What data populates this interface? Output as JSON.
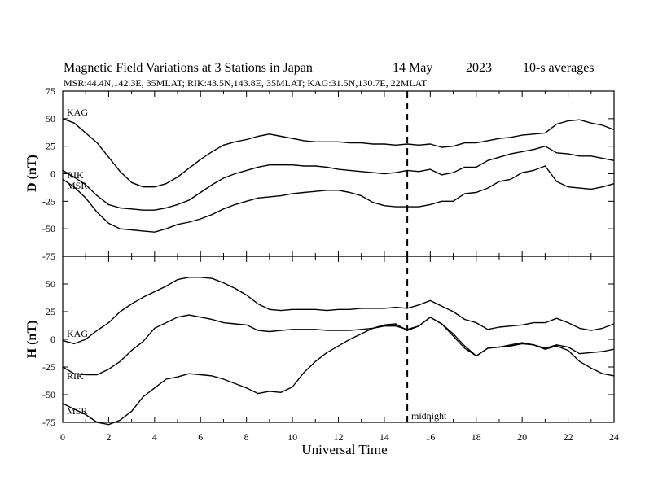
{
  "header": {
    "title": "Magnetic Field Variations at 3 Stations in Japan",
    "date": "14 May",
    "year": "2023",
    "averaging": "10-s averages",
    "stations_info": "MSR:44.4N,142.3E, 35MLAT;  RIK:43.5N,143.8E, 35MLAT;  KAG:31.5N,130.7E, 22MLAT"
  },
  "x_axis": {
    "label": "Universal Time",
    "range": [
      0,
      24
    ],
    "ticks": [
      0,
      2,
      4,
      6,
      8,
      10,
      12,
      14,
      16,
      18,
      20,
      22,
      24
    ]
  },
  "annotation": {
    "midnight_label": "midnight",
    "midnight_ut": 15
  },
  "chart_data": [
    {
      "type": "line",
      "panel": "top",
      "ylabel": "D (nT)",
      "ylim": [
        -75,
        75
      ],
      "yticks": [
        -75,
        -50,
        -25,
        0,
        25,
        50,
        75
      ],
      "x": [
        0,
        0.5,
        1,
        1.5,
        2,
        2.5,
        3,
        3.5,
        4,
        4.5,
        5,
        5.5,
        6,
        6.5,
        7,
        7.5,
        8,
        8.5,
        9,
        9.5,
        10,
        10.5,
        11,
        11.5,
        12,
        12.5,
        13,
        13.5,
        14,
        14.5,
        15,
        15.5,
        16,
        16.5,
        17,
        17.5,
        18,
        18.5,
        19,
        19.5,
        20,
        20.5,
        21,
        21.5,
        22,
        22.5,
        23,
        23.5,
        24
      ],
      "series": [
        {
          "name": "KAG",
          "values": [
            50,
            46,
            37,
            28,
            15,
            2,
            -8,
            -12,
            -12,
            -9,
            -3,
            5,
            13,
            20,
            26,
            29,
            31,
            34,
            36,
            34,
            32,
            30,
            29,
            29,
            29,
            28,
            28,
            27,
            27,
            26,
            27,
            26,
            27,
            24,
            25,
            28,
            28,
            30,
            32,
            33,
            35,
            36,
            37,
            45,
            48,
            49,
            46,
            44,
            40
          ]
        },
        {
          "name": "RIK",
          "values": [
            3,
            -3,
            -10,
            -20,
            -28,
            -31,
            -32,
            -33,
            -33,
            -31,
            -28,
            -24,
            -17,
            -10,
            -4,
            0,
            3,
            6,
            8,
            8,
            8,
            7,
            7,
            6,
            4,
            3,
            2,
            1,
            0,
            1,
            3,
            2,
            4,
            -1,
            1,
            6,
            6,
            12,
            15,
            18,
            20,
            22,
            25,
            19,
            18,
            16,
            16,
            14,
            12
          ]
        },
        {
          "name": "MSR",
          "values": [
            -5,
            -12,
            -22,
            -35,
            -45,
            -50,
            -51,
            -52,
            -53,
            -50,
            -46,
            -44,
            -41,
            -37,
            -32,
            -28,
            -25,
            -22,
            -21,
            -20,
            -18,
            -17,
            -16,
            -15,
            -15,
            -17,
            -20,
            -26,
            -29,
            -30,
            -30,
            -30,
            -28,
            -25,
            -25,
            -18,
            -17,
            -13,
            -7,
            -5,
            1,
            3,
            7,
            -7,
            -12,
            -13,
            -14,
            -12,
            -9
          ]
        }
      ]
    },
    {
      "type": "line",
      "panel": "bottom",
      "ylabel": "H (nT)",
      "ylim": [
        -75,
        75
      ],
      "yticks": [
        -75,
        -50,
        -25,
        0,
        25,
        50,
        75
      ],
      "x": [
        0,
        0.5,
        1,
        1.5,
        2,
        2.5,
        3,
        3.5,
        4,
        4.5,
        5,
        5.5,
        6,
        6.5,
        7,
        7.5,
        8,
        8.5,
        9,
        9.5,
        10,
        10.5,
        11,
        11.5,
        12,
        12.5,
        13,
        13.5,
        14,
        14.5,
        15,
        15.5,
        16,
        16.5,
        17,
        17.5,
        18,
        18.5,
        19,
        19.5,
        20,
        20.5,
        21,
        21.5,
        22,
        22.5,
        23,
        23.5,
        24
      ],
      "series": [
        {
          "name": "KAG",
          "values": [
            -1,
            -4,
            0,
            8,
            15,
            25,
            32,
            38,
            43,
            48,
            54,
            56,
            56,
            55,
            51,
            46,
            40,
            32,
            27,
            26,
            27,
            27,
            27,
            26,
            27,
            27,
            28,
            28,
            28,
            29,
            28,
            31,
            35,
            30,
            25,
            18,
            15,
            9,
            11,
            12,
            13,
            15,
            15,
            19,
            15,
            10,
            8,
            10,
            14
          ]
        },
        {
          "name": "RIK",
          "values": [
            -25,
            -31,
            -32,
            -32,
            -27,
            -20,
            -10,
            -2,
            10,
            15,
            20,
            22,
            20,
            18,
            15,
            14,
            13,
            8,
            7,
            8,
            9,
            9,
            9,
            8,
            8,
            8,
            9,
            10,
            12,
            12,
            9,
            12,
            20,
            14,
            5,
            -6,
            -15,
            -8,
            -7,
            -5,
            -3,
            -5,
            -8,
            -5,
            -7,
            -13,
            -12,
            -11,
            -9
          ]
        },
        {
          "name": "MSR",
          "values": [
            -58,
            -63,
            -68,
            -75,
            -77,
            -73,
            -65,
            -52,
            -44,
            -36,
            -34,
            -31,
            -32,
            -33,
            -36,
            -40,
            -44,
            -49,
            -47,
            -48,
            -43,
            -30,
            -20,
            -12,
            -6,
            0,
            5,
            10,
            13,
            14,
            8,
            12,
            20,
            14,
            3,
            -8,
            -15,
            -8,
            -7,
            -6,
            -4,
            -5,
            -9,
            -6,
            -10,
            -20,
            -26,
            -31,
            -33
          ]
        }
      ]
    }
  ]
}
